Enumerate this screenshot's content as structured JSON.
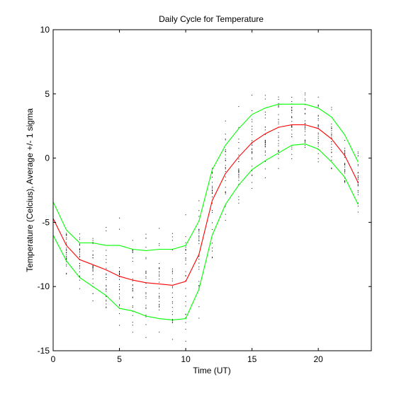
{
  "chart_data": {
    "type": "line",
    "title": "Daily Cycle for Temperature",
    "xlabel": "Time (UT)",
    "ylabel": "Temperature (Celcius), Average +/- 1 sigma",
    "xlim": [
      0,
      24
    ],
    "ylim": [
      -15,
      10
    ],
    "xticks": [
      0,
      5,
      10,
      15,
      20
    ],
    "yticks": [
      -15,
      -10,
      -5,
      0,
      5,
      10
    ],
    "grid": false,
    "legend": "none",
    "x": [
      0,
      1,
      2,
      3,
      4,
      5,
      6,
      7,
      8,
      9,
      10,
      11,
      12,
      13,
      14,
      15,
      16,
      17,
      18,
      19,
      20,
      21,
      22,
      23
    ],
    "series": [
      {
        "color": "#ff0000",
        "values": [
          -4.7,
          -6.8,
          -7.9,
          -8.3,
          -8.7,
          -9.2,
          -9.5,
          -9.7,
          -9.8,
          -9.9,
          -9.6,
          -7.5,
          -3.3,
          -1.2,
          0.1,
          1.2,
          1.9,
          2.4,
          2.6,
          2.6,
          2.3,
          1.5,
          0.2,
          -1.9
        ]
      },
      {
        "color": "#00ff00",
        "values": [
          -3.4,
          -5.6,
          -6.6,
          -6.6,
          -6.8,
          -6.8,
          -7.1,
          -7.2,
          -7.1,
          -7.1,
          -6.8,
          -4.9,
          -0.9,
          1.0,
          2.3,
          3.4,
          3.9,
          4.2,
          4.2,
          4.2,
          3.9,
          3.2,
          1.8,
          -0.3
        ]
      },
      {
        "color": "#00ff00",
        "values": [
          -6.0,
          -8.0,
          -9.3,
          -10.0,
          -10.7,
          -11.7,
          -11.9,
          -12.3,
          -12.5,
          -12.6,
          -12.5,
          -10.2,
          -6.0,
          -3.6,
          -2.1,
          -0.9,
          -0.2,
          0.4,
          1.0,
          1.1,
          0.7,
          -0.3,
          -1.5,
          -3.6
        ]
      }
    ],
    "scatter_color": "#000000"
  }
}
